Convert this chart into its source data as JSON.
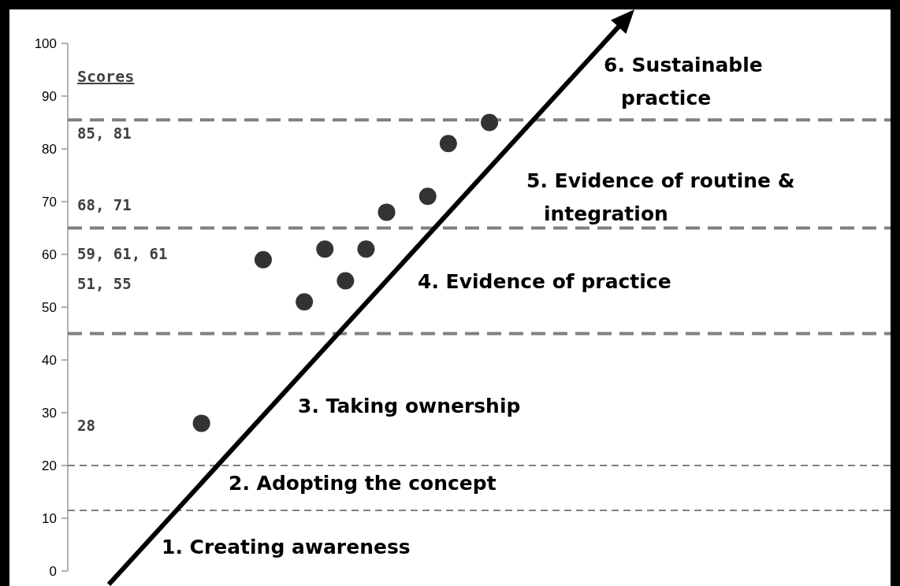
{
  "chart_data": {
    "type": "scatter",
    "categories": [
      null,
      null,
      null,
      null,
      null,
      null,
      null,
      null,
      null,
      null,
      null,
      null,
      null,
      null,
      null,
      null,
      null,
      null,
      null,
      null,
      null,
      null,
      null,
      null,
      null,
      null,
      null,
      null,
      null,
      null,
      null,
      null,
      null,
      null,
      null,
      null,
      null,
      null,
      null,
      null
    ],
    "series": [
      {
        "color": "#333333",
        "values": [
          null,
          null,
          null,
          null,
          null,
          null,
          28,
          null,
          null,
          59,
          null,
          51,
          61,
          55,
          61,
          68,
          null,
          71,
          81,
          null,
          85,
          null,
          null,
          null,
          null,
          null,
          null,
          null,
          null,
          null,
          null,
          null,
          null,
          null,
          null,
          null,
          null,
          null,
          null,
          null
        ]
      }
    ],
    "marker": "circle",
    "ylim": [
      0,
      100
    ],
    "yticks": [
      0,
      10,
      20,
      30,
      40,
      50,
      60,
      70,
      80,
      90,
      100
    ],
    "tick_labels": "y",
    "ref_lines": [
      {
        "axis": "y",
        "value": 11.5,
        "color": "#808080",
        "line_style": "dashed"
      },
      {
        "axis": "y",
        "value": 20,
        "color": "#808080",
        "line_style": "dashed"
      },
      {
        "axis": "y",
        "value": 45,
        "color": "#808080",
        "line_style": "dashed"
      },
      {
        "axis": "y",
        "value": 65,
        "color": "#808080",
        "line_style": "dashed"
      },
      {
        "axis": "y",
        "value": 85.5,
        "color": "#808080",
        "line_style": "dashed"
      }
    ],
    "annotations": [
      "1. Creating awareness",
      "2. Adopting the concept",
      "3. Taking ownership",
      "4. Evidence of practice",
      "5. Evidence of routine &\nintegration",
      "6. Sustainable\npractice",
      "Scores",
      "85, 81",
      "68, 71",
      "59, 61, 61",
      "51, 55",
      "28"
    ]
  }
}
